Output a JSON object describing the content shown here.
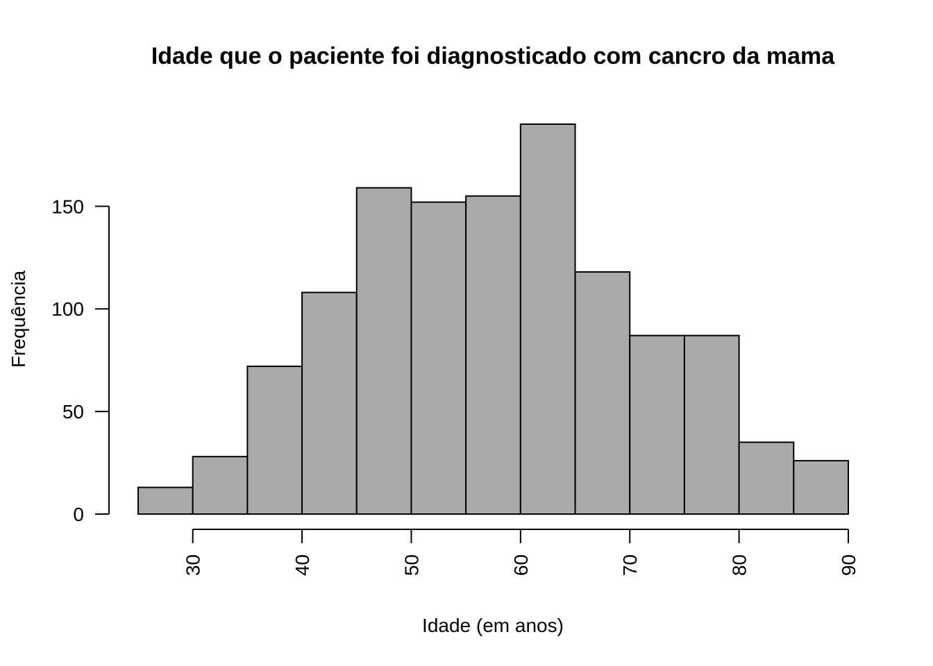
{
  "chart_data": {
    "type": "bar",
    "subtype": "histogram",
    "title": "Idade que o paciente foi diagnosticado com cancro da mama",
    "xlabel": "Idade (em anos)",
    "ylabel": "Frequência",
    "bins": [
      {
        "start": 25,
        "end": 30,
        "value": 13
      },
      {
        "start": 30,
        "end": 35,
        "value": 28
      },
      {
        "start": 35,
        "end": 40,
        "value": 72
      },
      {
        "start": 40,
        "end": 45,
        "value": 108
      },
      {
        "start": 45,
        "end": 50,
        "value": 159
      },
      {
        "start": 50,
        "end": 55,
        "value": 152
      },
      {
        "start": 55,
        "end": 60,
        "value": 155
      },
      {
        "start": 60,
        "end": 65,
        "value": 190
      },
      {
        "start": 65,
        "end": 70,
        "value": 118
      },
      {
        "start": 70,
        "end": 75,
        "value": 87
      },
      {
        "start": 75,
        "end": 80,
        "value": 87
      },
      {
        "start": 80,
        "end": 85,
        "value": 35
      },
      {
        "start": 85,
        "end": 90,
        "value": 26
      }
    ],
    "xlim": [
      25,
      90
    ],
    "ylim": [
      0,
      190
    ],
    "x_ticks": [
      30,
      40,
      50,
      60,
      70,
      80,
      90
    ],
    "x_tick_labels": [
      "30",
      "40",
      "50",
      "60",
      "70",
      "80",
      "90"
    ],
    "y_ticks": [
      0,
      50,
      100,
      150
    ],
    "y_tick_labels": [
      "0",
      "50",
      "100",
      "150"
    ],
    "bar_color": "#aaaaaa",
    "edge_color": "#000000",
    "grid": false,
    "legend": "none"
  }
}
